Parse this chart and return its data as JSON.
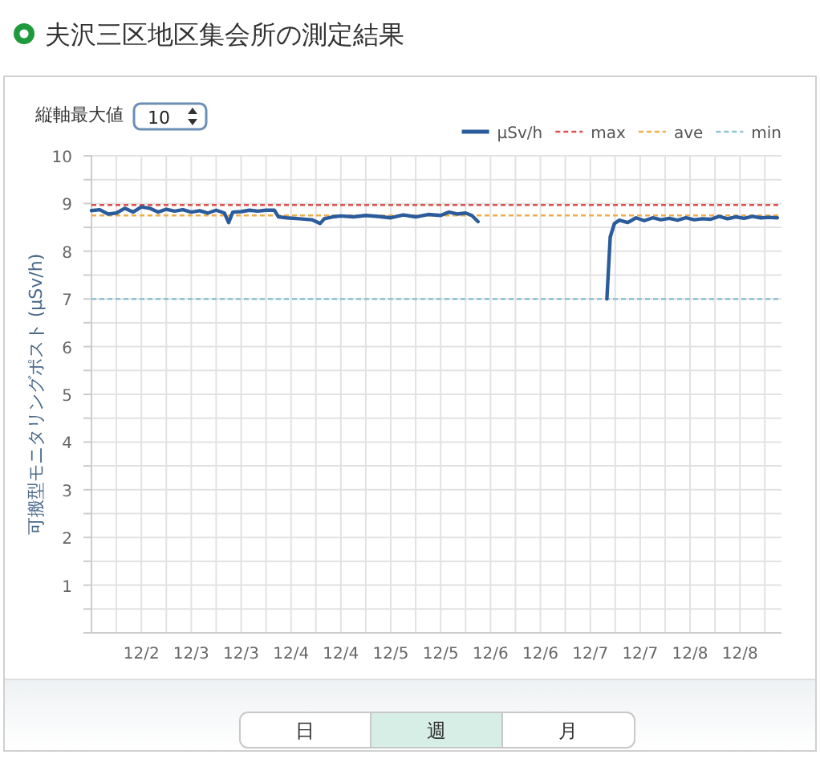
{
  "chart_data": {
    "type": "line",
    "title": "夫沢三区地区集会所の測定結果",
    "ylabel": "可搬型モニタリングポスト (μSv/h)",
    "annotations": [
      "縦軸最大値",
      "10",
      "日",
      "週",
      "月"
    ],
    "series": [
      {
        "name": "μSv/h",
        "color": "#2a5b9b",
        "x": [
          "--12-02T00:00",
          "--12-02T02:00",
          "--12-02T04:00",
          "--12-02T06:00",
          "--12-02T08:00",
          "--12-02T10:00",
          "--12-02T12:00",
          "--12-02T14:00",
          "--12-02T16:00",
          "--12-02T18:00",
          "--12-02T20:00",
          "--12-02T22:00",
          "--12-03T00:00",
          "--12-03T02:00",
          "--12-03T04:00",
          "--12-03T06:00",
          "--12-03T08:00",
          "--12-03T09:00",
          "--12-03T10:00",
          "--12-03T12:00",
          "--12-03T14:00",
          "--12-03T16:00",
          "--12-03T18:00",
          "--12-03T20:00",
          "--12-03T21:00",
          "--12-03T23:00",
          "--12-04T02:00",
          "--12-04T05:00",
          "--12-04T07:00",
          "--12-04T08:00",
          "--12-04T10:00",
          "--12-04T12:00",
          "--12-04T15:00",
          "--12-04T18:00",
          "--12-04T21:00",
          "--12-05T00:00",
          "--12-05T03:00",
          "--12-05T06:00",
          "--12-05T09:00",
          "--12-05T12:00",
          "--12-05T14:00",
          "--12-05T16:00",
          "--12-05T18:00",
          "--12-05T19:30",
          "--12-05T21:00"
        ],
        "values": [
          8.85,
          8.87,
          8.78,
          8.8,
          8.9,
          8.82,
          8.93,
          8.9,
          8.82,
          8.88,
          8.84,
          8.87,
          8.82,
          8.85,
          8.8,
          8.86,
          8.8,
          8.6,
          8.82,
          8.83,
          8.86,
          8.84,
          8.86,
          8.86,
          8.72,
          8.7,
          8.68,
          8.66,
          8.58,
          8.68,
          8.72,
          8.74,
          8.72,
          8.75,
          8.73,
          8.7,
          8.76,
          8.72,
          8.77,
          8.75,
          8.82,
          8.78,
          8.8,
          8.75,
          8.62
        ]
      },
      {
        "color": "#2a5b9b",
        "x": [
          "--12-07T04:00",
          "--12-07T04:48",
          "--12-07T05:48",
          "--12-07T07:00",
          "--12-07T09:00",
          "--12-07T11:00",
          "--12-07T13:00",
          "--12-07T15:00",
          "--12-07T17:00",
          "--12-07T19:00",
          "--12-07T21:00",
          "--12-07T23:00",
          "--12-08T01:00",
          "--12-08T03:00",
          "--12-08T05:00",
          "--12-08T07:00",
          "--12-08T09:00",
          "--12-08T11:00",
          "--12-08T13:00",
          "--12-08T15:00",
          "--12-08T17:00",
          "--12-08T19:00",
          "--12-08T21:00"
        ],
        "values": [
          7.0,
          8.3,
          8.58,
          8.65,
          8.6,
          8.7,
          8.64,
          8.7,
          8.66,
          8.69,
          8.65,
          8.7,
          8.66,
          8.68,
          8.67,
          8.73,
          8.68,
          8.72,
          8.69,
          8.73,
          8.7,
          8.71,
          8.7
        ]
      }
    ],
    "ref_lines": [
      {
        "axis": "y",
        "value": 8.97,
        "label": "max",
        "color": "#d9534f",
        "line_style": "dashed"
      },
      {
        "axis": "y",
        "value": 8.75,
        "label": "ave",
        "color": "#f0ad4e",
        "line_style": "dashed"
      },
      {
        "axis": "y",
        "value": 7.0,
        "label": "min",
        "color": "#8fc3d4",
        "line_style": "dashed"
      }
    ],
    "xlim": [
      "--12-02T00:00",
      "--12-08T22:00"
    ],
    "xticks": [
      {
        "value": "--12-02T06:00",
        "label": null
      },
      {
        "value": "--12-02T12:00",
        "label": "12/2"
      },
      {
        "value": "--12-02T18:00",
        "label": null
      },
      {
        "value": "--12-03T00:00",
        "label": "12/3"
      },
      {
        "value": "--12-03T06:00",
        "label": null
      },
      {
        "value": "--12-03T12:00",
        "label": "12/3"
      },
      {
        "value": "--12-03T18:00",
        "label": null
      },
      {
        "value": "--12-04T00:00",
        "label": "12/4"
      },
      {
        "value": "--12-04T06:00",
        "label": null
      },
      {
        "value": "--12-04T12:00",
        "label": "12/4"
      },
      {
        "value": "--12-04T18:00",
        "label": null
      },
      {
        "value": "--12-05T00:00",
        "label": "12/5"
      },
      {
        "value": "--12-05T06:00",
        "label": null
      },
      {
        "value": "--12-05T12:00",
        "label": "12/5"
      },
      {
        "value": "--12-05T18:00",
        "label": null
      },
      {
        "value": "--12-06T00:00",
        "label": "12/6"
      },
      {
        "value": "--12-06T06:00",
        "label": null
      },
      {
        "value": "--12-06T12:00",
        "label": "12/6"
      },
      {
        "value": "--12-06T18:00",
        "label": null
      },
      {
        "value": "--12-07T00:00",
        "label": "12/7"
      },
      {
        "value": "--12-07T06:00",
        "label": null
      },
      {
        "value": "--12-07T12:00",
        "label": "12/7"
      },
      {
        "value": "--12-07T18:00",
        "label": null
      },
      {
        "value": "--12-08T00:00",
        "label": "12/8"
      },
      {
        "value": "--12-08T06:00",
        "label": null
      },
      {
        "value": "--12-08T12:00",
        "label": "12/8"
      },
      {
        "value": "--12-08T18:00",
        "label": null
      }
    ],
    "ylim": [
      0,
      10
    ],
    "yticks": [
      {
        "value": 0,
        "label": null
      },
      {
        "value": 0.5,
        "label": null
      },
      1,
      {
        "value": 1.5,
        "label": null
      },
      2,
      {
        "value": 2.5,
        "label": null
      },
      3,
      {
        "value": 3.5,
        "label": null
      },
      4,
      {
        "value": 4.5,
        "label": null
      },
      5,
      {
        "value": 5.5,
        "label": null
      },
      6,
      {
        "value": 6.5,
        "label": null
      },
      7,
      {
        "value": 7.5,
        "label": null
      },
      8,
      {
        "value": 8.5,
        "label": null
      },
      9,
      {
        "value": 9.5,
        "label": null
      },
      10
    ],
    "grid": true,
    "legend": "top right",
    "marker": "none",
    "line_style": "solid"
  }
}
